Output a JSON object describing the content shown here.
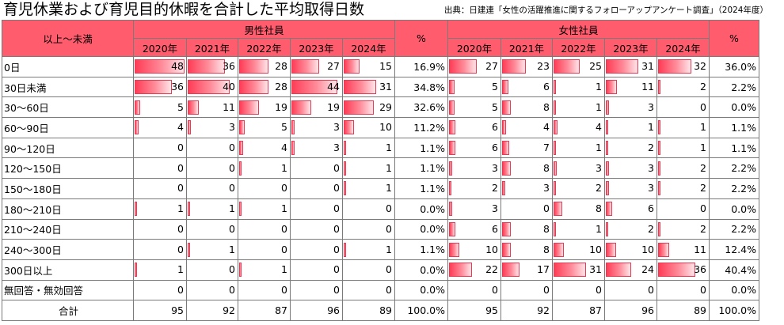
{
  "title": "育児休業および育児目的休暇を合計した平均取得日数",
  "source": "出典：日建連「女性の活躍推進に関するフォローアップアンケート調査」（2024年度）",
  "header": {
    "corner": "以上～未満",
    "male_group": "男性社員",
    "female_group": "女性社員",
    "pct": "%",
    "years": [
      "2020年",
      "2021年",
      "2022年",
      "2023年",
      "2024年"
    ]
  },
  "colors": {
    "header_bg": "#ff5c6e",
    "bar": "#ff3d57"
  },
  "rows": [
    {
      "label": "0日",
      "male": [
        48,
        36,
        28,
        27,
        15
      ],
      "male_pct": "16.9%",
      "female": [
        27,
        23,
        25,
        31,
        32
      ],
      "female_pct": "36.0%"
    },
    {
      "label": "30日未満",
      "male": [
        36,
        40,
        28,
        44,
        31
      ],
      "male_pct": "34.8%",
      "female": [
        5,
        6,
        1,
        11,
        2
      ],
      "female_pct": "2.2%"
    },
    {
      "label": "30～60日",
      "male": [
        5,
        11,
        19,
        19,
        29
      ],
      "male_pct": "32.6%",
      "female": [
        5,
        8,
        1,
        3,
        0
      ],
      "female_pct": "0.0%"
    },
    {
      "label": "60～90日",
      "male": [
        4,
        3,
        5,
        3,
        10
      ],
      "male_pct": "11.2%",
      "female": [
        6,
        4,
        4,
        1,
        1
      ],
      "female_pct": "1.1%"
    },
    {
      "label": "90～120日",
      "male": [
        0,
        0,
        4,
        3,
        1
      ],
      "male_pct": "1.1%",
      "female": [
        6,
        7,
        1,
        2,
        1
      ],
      "female_pct": "1.1%"
    },
    {
      "label": "120～150日",
      "male": [
        0,
        0,
        1,
        0,
        1
      ],
      "male_pct": "1.1%",
      "female": [
        3,
        8,
        3,
        3,
        2
      ],
      "female_pct": "2.2%"
    },
    {
      "label": "150～180日",
      "male": [
        0,
        0,
        0,
        0,
        1
      ],
      "male_pct": "1.1%",
      "female": [
        2,
        3,
        2,
        3,
        2
      ],
      "female_pct": "2.2%"
    },
    {
      "label": "180～210日",
      "male": [
        1,
        1,
        1,
        0,
        0
      ],
      "male_pct": "0.0%",
      "female": [
        3,
        0,
        8,
        6,
        0
      ],
      "female_pct": "0.0%"
    },
    {
      "label": "210～240日",
      "male": [
        0,
        0,
        0,
        0,
        0
      ],
      "male_pct": "0.0%",
      "female": [
        6,
        8,
        1,
        2,
        2
      ],
      "female_pct": "2.2%"
    },
    {
      "label": "240～300日",
      "male": [
        0,
        1,
        0,
        0,
        1
      ],
      "male_pct": "1.1%",
      "female": [
        10,
        8,
        10,
        10,
        11
      ],
      "female_pct": "12.4%"
    },
    {
      "label": "300日以上",
      "male": [
        1,
        0,
        1,
        0,
        0
      ],
      "male_pct": "0.0%",
      "female": [
        22,
        17,
        31,
        24,
        36
      ],
      "female_pct": "40.4%"
    },
    {
      "label": "無回答・無効回答",
      "male": [
        0,
        0,
        0,
        0,
        0
      ],
      "male_pct": "0.0%",
      "female": [
        0,
        0,
        0,
        0,
        0
      ],
      "female_pct": "0.0%"
    }
  ],
  "total": {
    "label": "合計",
    "male": [
      95,
      92,
      87,
      96,
      89
    ],
    "male_pct": "100.0%",
    "female": [
      95,
      92,
      87,
      96,
      89
    ],
    "female_pct": "100.0%"
  }
}
